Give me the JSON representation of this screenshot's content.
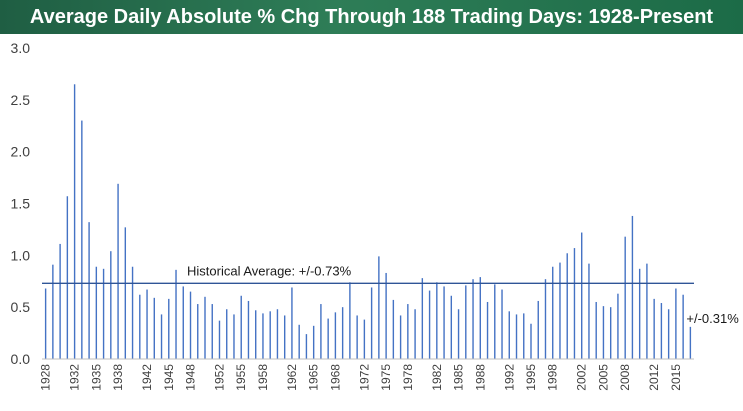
{
  "title": "Average Daily Absolute % Chg Through 188 Trading Days: 1928-Present",
  "colors": {
    "title_bg": "#2e7d57",
    "bar": "#4472c4",
    "avg_line": "#2f5597",
    "axis": "#bfbfbf"
  },
  "chart_data": {
    "type": "bar",
    "title": "Average Daily Absolute % Chg Through 188 Trading Days: 1928-Present",
    "xlabel": "",
    "ylabel": "",
    "ylim": [
      0,
      3.0
    ],
    "yticks": [
      "0.0",
      "0.5",
      "1.0",
      "1.5",
      "2.0",
      "2.5",
      "3.0"
    ],
    "xtick_labels": [
      "1928",
      "1932",
      "1935",
      "1938",
      "1942",
      "1945",
      "1948",
      "1952",
      "1955",
      "1958",
      "1962",
      "1965",
      "1968",
      "1972",
      "1975",
      "1978",
      "1982",
      "1985",
      "1988",
      "1992",
      "1995",
      "1998",
      "2002",
      "2005",
      "2008",
      "2012",
      "2015"
    ],
    "categories": [
      "1928",
      "1929",
      "1930",
      "1931",
      "1932",
      "1933",
      "1934",
      "1935",
      "1936",
      "1937",
      "1938",
      "1939",
      "1940",
      "1941",
      "1942",
      "1943",
      "1944",
      "1945",
      "1946",
      "1947",
      "1948",
      "1949",
      "1950",
      "1951",
      "1952",
      "1953",
      "1954",
      "1955",
      "1956",
      "1957",
      "1958",
      "1959",
      "1960",
      "1961",
      "1962",
      "1963",
      "1964",
      "1965",
      "1966",
      "1967",
      "1968",
      "1969",
      "1970",
      "1971",
      "1972",
      "1973",
      "1974",
      "1975",
      "1976",
      "1977",
      "1978",
      "1979",
      "1980",
      "1981",
      "1982",
      "1983",
      "1984",
      "1985",
      "1986",
      "1987",
      "1988",
      "1989",
      "1990",
      "1991",
      "1992",
      "1993",
      "1994",
      "1995",
      "1996",
      "1997",
      "1998",
      "1999",
      "2000",
      "2001",
      "2002",
      "2003",
      "2004",
      "2005",
      "2006",
      "2007",
      "2008",
      "2009",
      "2010",
      "2011",
      "2012",
      "2013",
      "2014",
      "2015",
      "2016",
      "2017"
    ],
    "values": [
      0.68,
      0.91,
      1.11,
      1.57,
      2.65,
      2.3,
      1.32,
      0.89,
      0.87,
      1.04,
      1.69,
      1.27,
      0.89,
      0.62,
      0.67,
      0.59,
      0.43,
      0.58,
      0.86,
      0.7,
      0.65,
      0.53,
      0.6,
      0.53,
      0.37,
      0.48,
      0.43,
      0.61,
      0.56,
      0.47,
      0.44,
      0.46,
      0.48,
      0.42,
      0.69,
      0.33,
      0.24,
      0.32,
      0.53,
      0.39,
      0.45,
      0.5,
      0.74,
      0.42,
      0.38,
      0.69,
      0.99,
      0.83,
      0.57,
      0.42,
      0.53,
      0.48,
      0.78,
      0.66,
      0.74,
      0.7,
      0.61,
      0.48,
      0.71,
      0.77,
      0.79,
      0.55,
      0.72,
      0.67,
      0.46,
      0.43,
      0.44,
      0.34,
      0.56,
      0.77,
      0.89,
      0.93,
      1.02,
      1.07,
      1.22,
      0.92,
      0.55,
      0.51,
      0.5,
      0.63,
      1.18,
      1.38,
      0.87,
      0.92,
      0.58,
      0.54,
      0.48,
      0.68,
      0.62,
      0.31
    ],
    "average": 0.73,
    "annotations": [
      {
        "text": "Historical Average: +/-0.73%",
        "value": 0.73
      },
      {
        "text": "+/-0.31%",
        "category": "2017"
      }
    ],
    "grid": false,
    "legend": "none"
  }
}
